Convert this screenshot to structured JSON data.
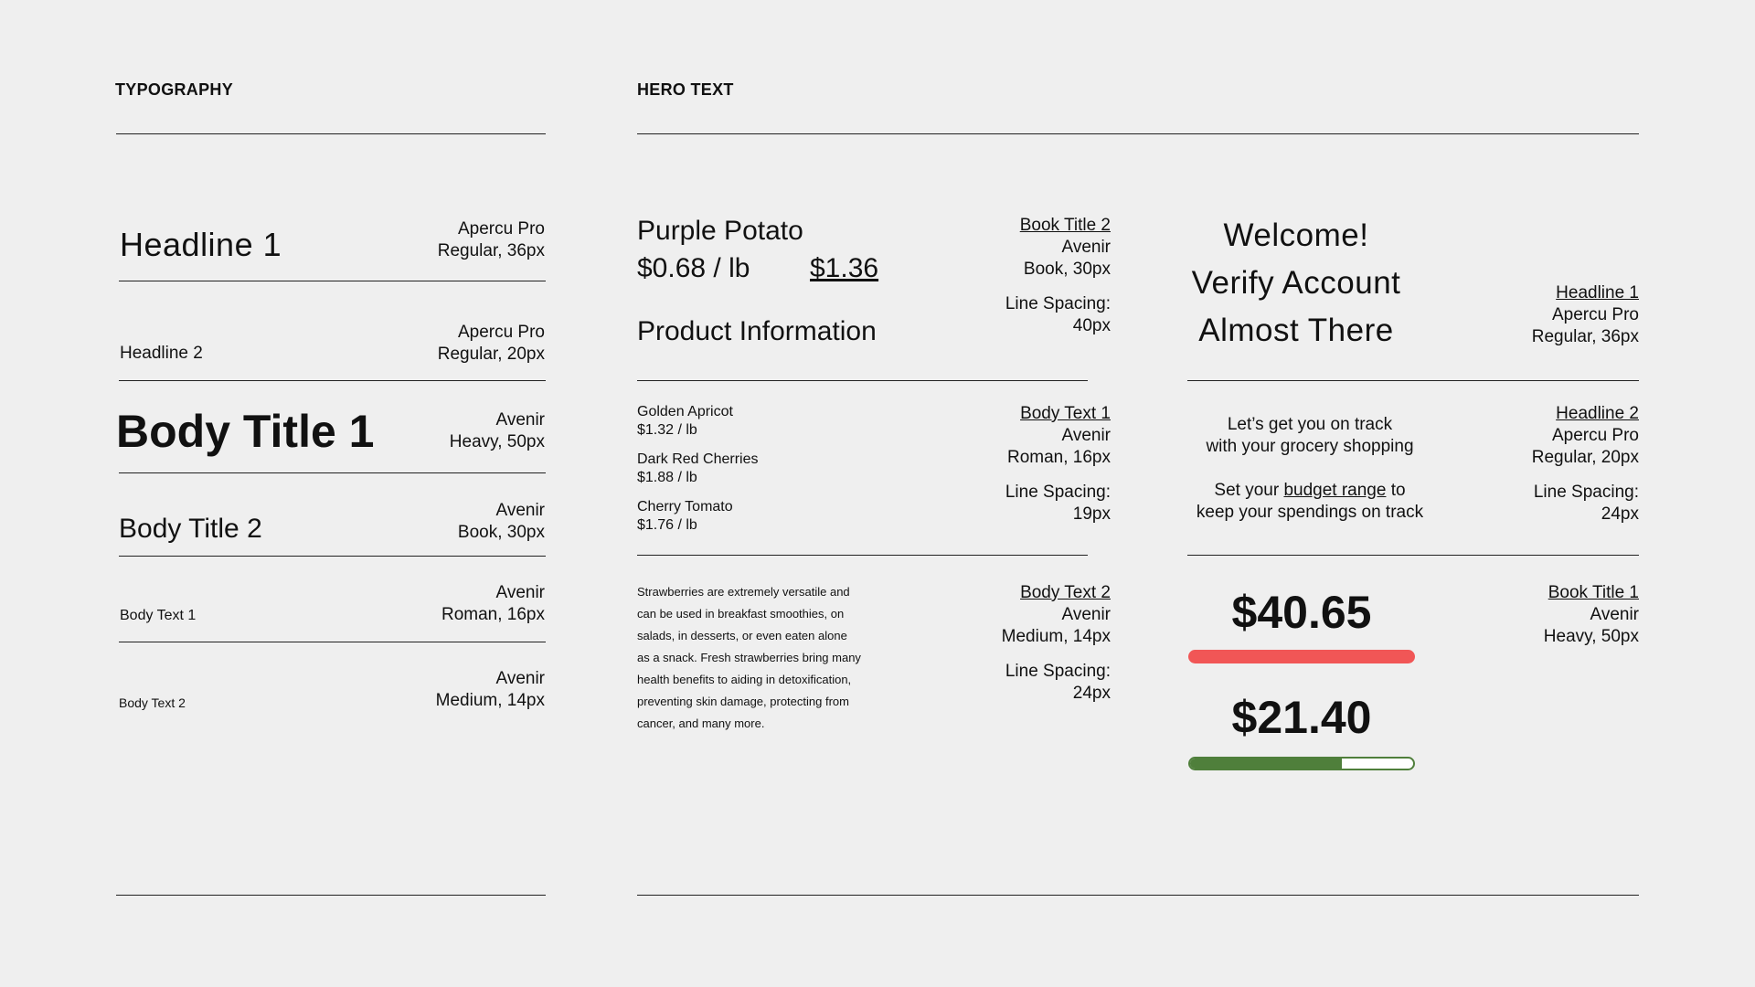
{
  "sections": {
    "typography": "TYPOGRAPHY",
    "hero_text": "HERO TEXT"
  },
  "typography": [
    {
      "sample": "Headline 1",
      "font": "Apercu Pro",
      "detail": "Regular, 36px"
    },
    {
      "sample": "Headline 2",
      "font": "Apercu Pro",
      "detail": "Regular, 20px"
    },
    {
      "sample": "Body Title 1",
      "font": "Avenir",
      "detail": "Heavy, 50px"
    },
    {
      "sample": "Body Title 2",
      "font": "Avenir",
      "detail": "Book, 30px"
    },
    {
      "sample": "Body Text 1",
      "font": "Avenir",
      "detail": "Roman, 16px"
    },
    {
      "sample": "Body Text 2",
      "font": "Avenir",
      "detail": "Medium, 14px"
    }
  ],
  "hero": {
    "product": {
      "name": "Purple Potato",
      "unit_price": "$0.68 / lb",
      "total": "$1.36",
      "info_heading": "Product Information",
      "spec": {
        "title": "Book Title 2",
        "font": "Avenir",
        "detail": "Book, 30px",
        "spacing_label": "Line Spacing:",
        "spacing": "40px"
      }
    },
    "items": [
      {
        "name": "Golden Apricot",
        "price": "$1.32 / lb"
      },
      {
        "name": "Dark Red Cherries",
        "price": "$1.88 / lb"
      },
      {
        "name": "Cherry Tomato",
        "price": "$1.76 / lb"
      }
    ],
    "items_spec": {
      "title": "Body Text 1",
      "font": "Avenir",
      "detail": "Roman, 16px",
      "spacing_label": "Line Spacing:",
      "spacing": "19px"
    },
    "paragraph_lines": [
      "Strawberries are extremely versatile and",
      "can be used in breakfast smoothies, on",
      "salads, in desserts, or even eaten alone",
      "as a snack. Fresh strawberries bring many",
      "health benefits to aiding in detoxification,",
      "preventing skin damage, protecting from",
      "cancer, and many more."
    ],
    "paragraph_spec": {
      "title": "Body Text 2",
      "font": "Avenir",
      "detail": "Medium, 14px",
      "spacing_label": "Line Spacing:",
      "spacing": "24px"
    },
    "headlines": [
      "Welcome!",
      "Verify Account",
      "Almost There"
    ],
    "headlines_spec": {
      "title": "Headline 1",
      "font": "Apercu Pro",
      "detail": "Regular, 36px"
    },
    "onboarding": {
      "line1": "Let’s get you on track",
      "line2": "with your grocery shopping",
      "line3_pre": "Set your ",
      "line3_link": "budget range",
      "line3_post": " to",
      "line4": "keep your spendings on track"
    },
    "onboarding_spec": {
      "title": "Headline 2",
      "font": "Apercu Pro",
      "detail": "Regular, 20px",
      "spacing_label": "Line Spacing:",
      "spacing": "24px"
    },
    "amounts": [
      {
        "value": "$40.65",
        "progress": 1.0,
        "color": "#f15656"
      },
      {
        "value": "$21.40",
        "progress": 0.68,
        "color": "#4f7f3b"
      }
    ],
    "amounts_spec": {
      "title": "Book Title 1",
      "font": "Avenir",
      "detail": "Heavy, 50px"
    }
  }
}
